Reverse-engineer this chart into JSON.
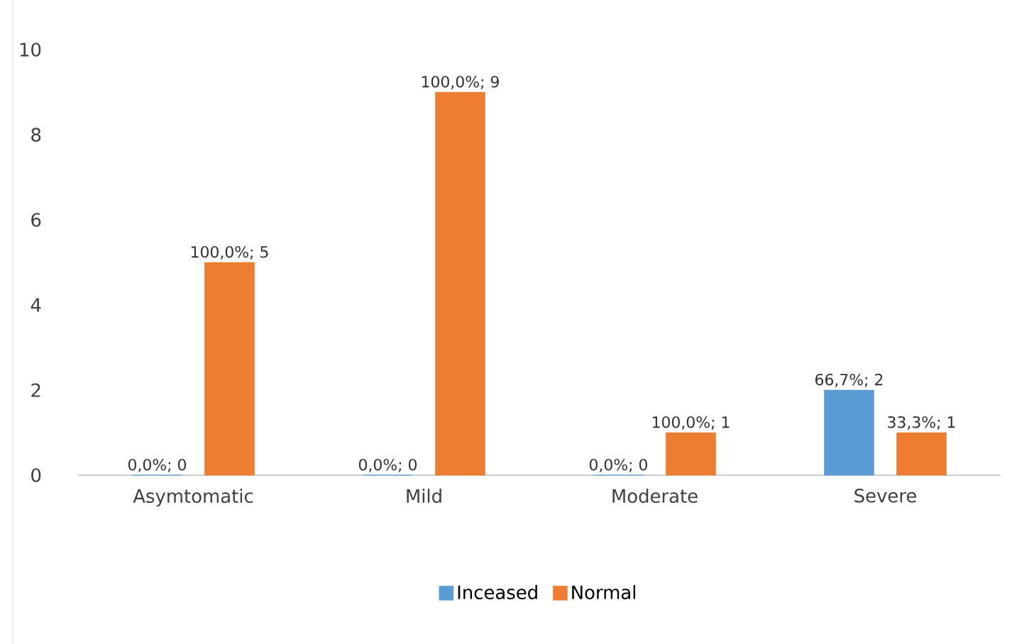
{
  "chart_data": {
    "type": "bar",
    "categories": [
      "Asymtomatic",
      "Mild",
      "Moderate",
      "Severe"
    ],
    "series": [
      {
        "name": "Inceased",
        "color": "#5b9bd5",
        "values": [
          0,
          0,
          0,
          2
        ],
        "value_labels": [
          "0,0%; 0",
          "0,0%; 0",
          "0,0%; 0",
          "66,7%; 2"
        ]
      },
      {
        "name": "Normal",
        "color": "#ed7d31",
        "values": [
          5,
          9,
          1,
          1
        ],
        "value_labels": [
          "100,0%; 5",
          "100,0%; 9",
          "100,0%; 1",
          "33,3%; 1"
        ]
      }
    ],
    "ylim": [
      0,
      10
    ],
    "yticks": [
      0,
      2,
      4,
      6,
      8,
      10
    ],
    "grid": false,
    "legend": "bottom"
  }
}
